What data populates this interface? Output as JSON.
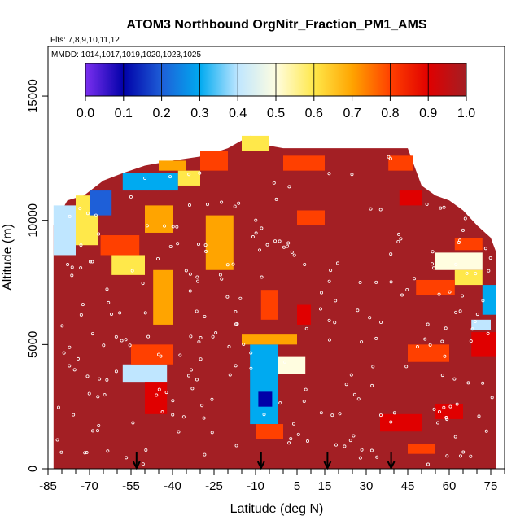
{
  "chart_data": {
    "type": "heatmap",
    "title": "ATOM3 Northbound OrgNitr_Fraction_PM1_AMS",
    "subtitle_flights": "Flts: 7,8,9,10,11,12",
    "subtitle_dates": "MMDD: 1014,1017,1019,1020,1023,1025",
    "xlabel": "Latitude (deg N)",
    "ylabel": "Altitude (m)",
    "xlim": [
      -85,
      80
    ],
    "ylim": [
      0,
      17000
    ],
    "x_ticks": [
      "-85",
      "-70",
      "-55",
      "-40",
      "-25",
      "-10",
      "5",
      "15",
      "30",
      "45",
      "60",
      "75"
    ],
    "x_tick_values": [
      -85,
      -70,
      -55,
      -40,
      -25,
      -10,
      5,
      15,
      30,
      45,
      60,
      75
    ],
    "y_ticks": [
      "0",
      "5000",
      "10000",
      "15000"
    ],
    "y_tick_values": [
      0,
      5000,
      10000,
      15000
    ],
    "colorbar": {
      "ticks": [
        "0.0",
        "0.1",
        "0.2",
        "0.3",
        "0.4",
        "0.5",
        "0.6",
        "0.7",
        "0.8",
        "0.9",
        "1.0"
      ],
      "colors": [
        "#7b2ff0",
        "#0000a8",
        "#1e5fd8",
        "#00aaf0",
        "#bfe6ff",
        "#fffde0",
        "#ffe84a",
        "#ffa400",
        "#ff4000",
        "#e00000",
        "#a31f24"
      ]
    },
    "background_value": 0.95,
    "arrow_latitudes": [
      -53,
      -8,
      16,
      39
    ],
    "features": [
      {
        "lat0": -83,
        "lat1": -75,
        "alt0": 8600,
        "alt1": 10600,
        "v": 0.35
      },
      {
        "lat0": -75,
        "lat1": -67,
        "alt0": 9000,
        "alt1": 11000,
        "v": 0.55
      },
      {
        "lat0": -70,
        "lat1": -62,
        "alt0": 10200,
        "alt1": 11200,
        "v": 0.2
      },
      {
        "lat0": -62,
        "lat1": -50,
        "alt0": 7800,
        "alt1": 8600,
        "v": 0.6
      },
      {
        "lat0": -66,
        "lat1": -52,
        "alt0": 8600,
        "alt1": 9400,
        "v": 0.75
      },
      {
        "lat0": -58,
        "lat1": -38,
        "alt0": 11200,
        "alt1": 11900,
        "v": 0.3
      },
      {
        "lat0": -38,
        "lat1": -30,
        "alt0": 11400,
        "alt1": 12000,
        "v": 0.6
      },
      {
        "lat0": -45,
        "lat1": -35,
        "alt0": 12000,
        "alt1": 12400,
        "v": 0.65
      },
      {
        "lat0": -50,
        "lat1": -40,
        "alt0": 9500,
        "alt1": 10600,
        "v": 0.7
      },
      {
        "lat0": -47,
        "lat1": -40,
        "alt0": 5800,
        "alt1": 8000,
        "v": 0.7
      },
      {
        "lat0": -58,
        "lat1": -42,
        "alt0": 3500,
        "alt1": 4200,
        "v": 0.35
      },
      {
        "lat0": -55,
        "lat1": -40,
        "alt0": 4200,
        "alt1": 5000,
        "v": 0.8
      },
      {
        "lat0": -50,
        "lat1": -42,
        "alt0": 2200,
        "alt1": 3500,
        "v": 0.85
      },
      {
        "lat0": -28,
        "lat1": -18,
        "alt0": 8000,
        "alt1": 10200,
        "v": 0.7
      },
      {
        "lat0": -30,
        "lat1": -20,
        "alt0": 12000,
        "alt1": 12800,
        "v": 0.75
      },
      {
        "lat0": -15,
        "lat1": -5,
        "alt0": 12800,
        "alt1": 13400,
        "v": 0.6
      },
      {
        "lat0": -12,
        "lat1": -2,
        "alt0": 1800,
        "alt1": 5000,
        "v": 0.3
      },
      {
        "lat0": -9,
        "lat1": -4,
        "alt0": 2500,
        "alt1": 3100,
        "v": 0.1
      },
      {
        "lat0": -15,
        "lat1": 5,
        "alt0": 5000,
        "alt1": 5400,
        "v": 0.7
      },
      {
        "lat0": -2,
        "lat1": 8,
        "alt0": 3800,
        "alt1": 4500,
        "v": 0.5
      },
      {
        "lat0": -10,
        "lat1": 0,
        "alt0": 1200,
        "alt1": 1800,
        "v": 0.8
      },
      {
        "lat0": -8,
        "lat1": -2,
        "alt0": 6000,
        "alt1": 7200,
        "v": 0.8
      },
      {
        "lat0": 0,
        "lat1": 15,
        "alt0": 12000,
        "alt1": 12600,
        "v": 0.75
      },
      {
        "lat0": 5,
        "lat1": 15,
        "alt0": 9800,
        "alt1": 10400,
        "v": 0.8
      },
      {
        "lat0": 5,
        "lat1": 10,
        "alt0": 5800,
        "alt1": 6600,
        "v": 0.85
      },
      {
        "lat0": 38,
        "lat1": 47,
        "alt0": 12000,
        "alt1": 12600,
        "v": 0.8
      },
      {
        "lat0": 42,
        "lat1": 50,
        "alt0": 10600,
        "alt1": 11200,
        "v": 0.85
      },
      {
        "lat0": 55,
        "lat1": 72,
        "alt0": 8000,
        "alt1": 8700,
        "v": 0.5
      },
      {
        "lat0": 62,
        "lat1": 72,
        "alt0": 7400,
        "alt1": 8000,
        "v": 0.6
      },
      {
        "lat0": 62,
        "lat1": 72,
        "alt0": 8800,
        "alt1": 9300,
        "v": 0.75
      },
      {
        "lat0": 48,
        "lat1": 62,
        "alt0": 7000,
        "alt1": 7600,
        "v": 0.8
      },
      {
        "lat0": 72,
        "lat1": 77,
        "alt0": 6200,
        "alt1": 7400,
        "v": 0.3
      },
      {
        "lat0": 68,
        "lat1": 75,
        "alt0": 5600,
        "alt1": 6000,
        "v": 0.4
      },
      {
        "lat0": 68,
        "lat1": 77,
        "alt0": 4500,
        "alt1": 5500,
        "v": 0.85
      },
      {
        "lat0": 45,
        "lat1": 60,
        "alt0": 4300,
        "alt1": 5000,
        "v": 0.8
      },
      {
        "lat0": 35,
        "lat1": 50,
        "alt0": 1500,
        "alt1": 2200,
        "v": 0.85
      },
      {
        "lat0": 55,
        "lat1": 65,
        "alt0": 2000,
        "alt1": 2600,
        "v": 0.85
      },
      {
        "lat0": 45,
        "lat1": 55,
        "alt0": 600,
        "alt1": 1000,
        "v": 0.8
      }
    ]
  }
}
